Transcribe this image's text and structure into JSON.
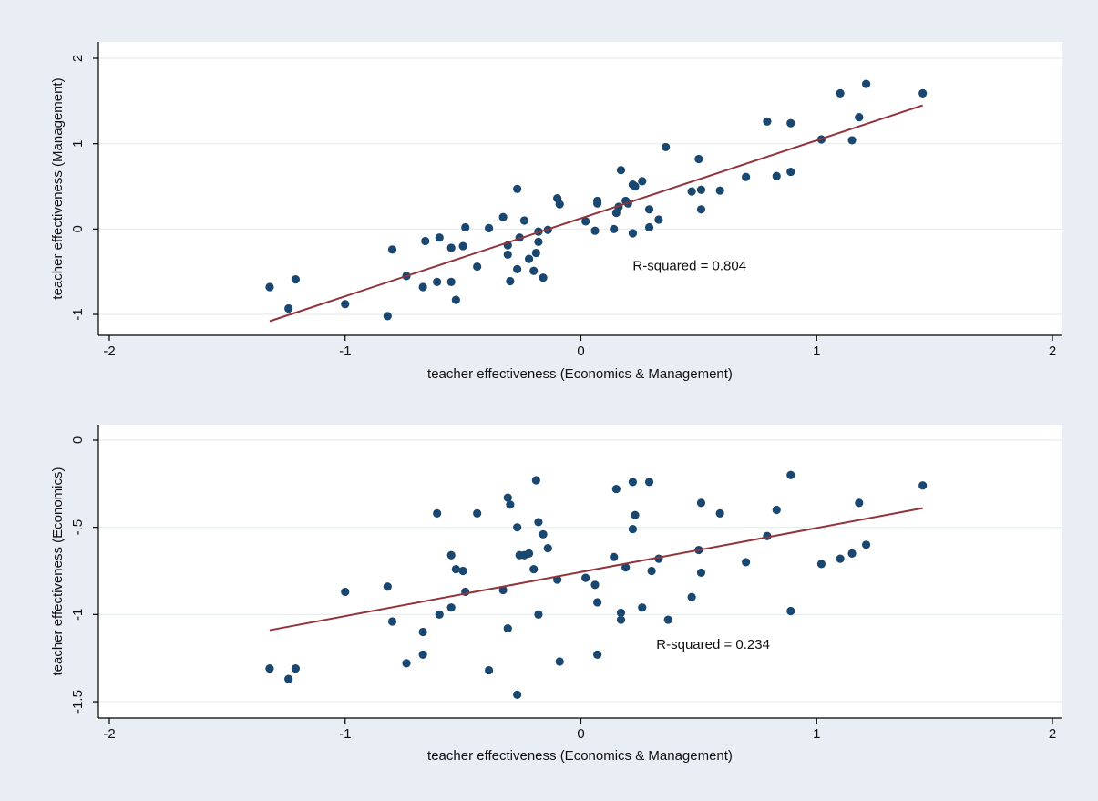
{
  "colors": {
    "outer_background": "#e8eef3",
    "plot_background": "#ffffff",
    "grid": "#e6ebef",
    "axis": "#000000",
    "point": "#1a476f",
    "fit_line": "#90353b"
  },
  "chart_data": [
    {
      "type": "scatter",
      "xlabel": "teacher effectiveness (Economics & Management)",
      "ylabel": "teacher effectiveness (Management)",
      "xlim": [
        -2,
        2
      ],
      "ylim": [
        -1,
        2
      ],
      "xticks": [
        -2,
        -1,
        0,
        1,
        2
      ],
      "yticks": [
        -1,
        0,
        1,
        2
      ],
      "xtick_labels": [
        "-2",
        "-1",
        "0",
        "1",
        "2"
      ],
      "ytick_labels": [
        "-1",
        "0",
        "1",
        "2"
      ],
      "grid": true,
      "annotation": "R-squared = 0.804",
      "annotation_pos": [
        0.22,
        -0.43
      ],
      "fit_line": {
        "x": [
          -1.32,
          1.45
        ],
        "y": [
          -1.08,
          1.45
        ]
      },
      "points": [
        [
          -1.32,
          -0.68
        ],
        [
          -1.24,
          -0.93
        ],
        [
          -1.21,
          -0.59
        ],
        [
          -1.0,
          -0.88
        ],
        [
          -0.82,
          -1.02
        ],
        [
          -0.8,
          -0.24
        ],
        [
          -0.74,
          -0.55
        ],
        [
          -0.67,
          -0.68
        ],
        [
          -0.66,
          -0.14
        ],
        [
          -0.61,
          -0.62
        ],
        [
          -0.6,
          -0.1
        ],
        [
          -0.55,
          -0.22
        ],
        [
          -0.55,
          -0.62
        ],
        [
          -0.53,
          -0.83
        ],
        [
          -0.5,
          -0.2
        ],
        [
          -0.49,
          0.02
        ],
        [
          -0.44,
          -0.44
        ],
        [
          -0.39,
          0.01
        ],
        [
          -0.33,
          0.14
        ],
        [
          -0.31,
          -0.3
        ],
        [
          -0.31,
          -0.19
        ],
        [
          -0.3,
          -0.61
        ],
        [
          -0.27,
          0.47
        ],
        [
          -0.27,
          -0.47
        ],
        [
          -0.26,
          -0.1
        ],
        [
          -0.24,
          0.1
        ],
        [
          -0.22,
          -0.35
        ],
        [
          -0.2,
          -0.49
        ],
        [
          -0.19,
          -0.28
        ],
        [
          -0.18,
          -0.15
        ],
        [
          -0.18,
          -0.03
        ],
        [
          -0.16,
          -0.57
        ],
        [
          -0.14,
          -0.01
        ],
        [
          -0.1,
          0.36
        ],
        [
          -0.09,
          0.29
        ],
        [
          0.02,
          0.09
        ],
        [
          0.06,
          -0.02
        ],
        [
          0.07,
          0.3
        ],
        [
          0.07,
          0.33
        ],
        [
          0.14,
          0.0
        ],
        [
          0.15,
          0.19
        ],
        [
          0.16,
          0.26
        ],
        [
          0.17,
          0.69
        ],
        [
          0.19,
          0.33
        ],
        [
          0.2,
          0.3
        ],
        [
          0.22,
          -0.05
        ],
        [
          0.22,
          0.52
        ],
        [
          0.23,
          0.5
        ],
        [
          0.26,
          0.56
        ],
        [
          0.29,
          0.23
        ],
        [
          0.29,
          0.02
        ],
        [
          0.33,
          0.11
        ],
        [
          0.36,
          0.96
        ],
        [
          0.47,
          0.44
        ],
        [
          0.5,
          0.82
        ],
        [
          0.51,
          0.46
        ],
        [
          0.51,
          0.23
        ],
        [
          0.59,
          0.45
        ],
        [
          0.7,
          0.61
        ],
        [
          0.79,
          1.26
        ],
        [
          0.83,
          0.62
        ],
        [
          0.89,
          0.67
        ],
        [
          0.89,
          1.24
        ],
        [
          1.02,
          1.05
        ],
        [
          1.1,
          1.59
        ],
        [
          1.15,
          1.04
        ],
        [
          1.18,
          1.31
        ],
        [
          1.21,
          1.7
        ],
        [
          1.45,
          1.59
        ]
      ]
    },
    {
      "type": "scatter",
      "xlabel": "teacher effectiveness (Economics & Management)",
      "ylabel": "teacher effectiveness (Economics)",
      "xlim": [
        -2,
        2
      ],
      "ylim": [
        -1.5,
        0
      ],
      "xticks": [
        -2,
        -1,
        0,
        1,
        2
      ],
      "yticks": [
        -1.5,
        -1,
        -0.5,
        0
      ],
      "xtick_labels": [
        "-2",
        "-1",
        "0",
        "1",
        "2"
      ],
      "ytick_labels": [
        "-1.5",
        "-1",
        "-.5",
        "0"
      ],
      "grid": true,
      "annotation": "R-squared = 0.234",
      "annotation_pos": [
        0.32,
        -1.17
      ],
      "fit_line": {
        "x": [
          -1.32,
          1.45
        ],
        "y": [
          -1.09,
          -0.39
        ]
      },
      "points": [
        [
          -1.32,
          -1.31
        ],
        [
          -1.24,
          -1.37
        ],
        [
          -1.21,
          -1.31
        ],
        [
          -1.0,
          -0.87
        ],
        [
          -0.82,
          -0.84
        ],
        [
          -0.8,
          -1.04
        ],
        [
          -0.74,
          -1.28
        ],
        [
          -0.67,
          -1.23
        ],
        [
          -0.67,
          -1.1
        ],
        [
          -0.61,
          -0.42
        ],
        [
          -0.6,
          -1.0
        ],
        [
          -0.55,
          -0.66
        ],
        [
          -0.55,
          -0.96
        ],
        [
          -0.53,
          -0.74
        ],
        [
          -0.5,
          -0.75
        ],
        [
          -0.49,
          -0.87
        ],
        [
          -0.44,
          -0.42
        ],
        [
          -0.39,
          -1.32
        ],
        [
          -0.33,
          -0.86
        ],
        [
          -0.31,
          -0.33
        ],
        [
          -0.31,
          -1.08
        ],
        [
          -0.3,
          -0.37
        ],
        [
          -0.27,
          -0.5
        ],
        [
          -0.27,
          -1.46
        ],
        [
          -0.26,
          -0.66
        ],
        [
          -0.24,
          -0.66
        ],
        [
          -0.22,
          -0.65
        ],
        [
          -0.2,
          -0.74
        ],
        [
          -0.19,
          -0.23
        ],
        [
          -0.18,
          -1.0
        ],
        [
          -0.18,
          -0.47
        ],
        [
          -0.16,
          -0.54
        ],
        [
          -0.14,
          -0.62
        ],
        [
          -0.1,
          -0.8
        ],
        [
          -0.09,
          -1.27
        ],
        [
          0.02,
          -0.79
        ],
        [
          0.06,
          -0.83
        ],
        [
          0.07,
          -0.93
        ],
        [
          0.07,
          -1.23
        ],
        [
          0.14,
          -0.67
        ],
        [
          0.15,
          -0.28
        ],
        [
          0.17,
          -0.99
        ],
        [
          0.17,
          -1.03
        ],
        [
          0.19,
          -0.73
        ],
        [
          0.22,
          -0.24
        ],
        [
          0.22,
          -0.51
        ],
        [
          0.23,
          -0.43
        ],
        [
          0.26,
          -0.96
        ],
        [
          0.29,
          -0.24
        ],
        [
          0.3,
          -0.75
        ],
        [
          0.33,
          -0.68
        ],
        [
          0.37,
          -1.03
        ],
        [
          0.47,
          -0.9
        ],
        [
          0.5,
          -0.63
        ],
        [
          0.51,
          -0.36
        ],
        [
          0.51,
          -0.76
        ],
        [
          0.59,
          -0.42
        ],
        [
          0.7,
          -0.7
        ],
        [
          0.79,
          -0.55
        ],
        [
          0.83,
          -0.4
        ],
        [
          0.89,
          -0.2
        ],
        [
          0.89,
          -0.98
        ],
        [
          1.02,
          -0.71
        ],
        [
          1.1,
          -0.68
        ],
        [
          1.15,
          -0.65
        ],
        [
          1.18,
          -0.36
        ],
        [
          1.21,
          -0.6
        ],
        [
          1.45,
          -0.26
        ]
      ]
    }
  ]
}
